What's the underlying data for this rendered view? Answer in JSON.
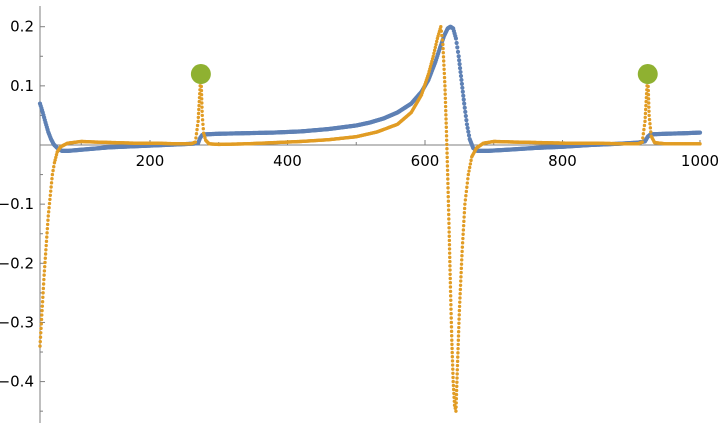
{
  "chart_data": {
    "type": "scatter",
    "title": "",
    "xlabel": "",
    "ylabel": "",
    "xlim": [
      40,
      1000
    ],
    "ylim": [
      -0.47,
      0.235
    ],
    "grid": false,
    "legend": "none",
    "x_ticks": {
      "major": [
        {
          "value": 200,
          "label": "200"
        },
        {
          "value": 400,
          "label": "400"
        },
        {
          "value": 600,
          "label": "600"
        },
        {
          "value": 800,
          "label": "800"
        },
        {
          "value": 1000,
          "label": "1000"
        }
      ],
      "minor": [
        100,
        300,
        500,
        700,
        900
      ]
    },
    "y_ticks": {
      "major": [
        {
          "value": 0.2,
          "label": "0.2"
        },
        {
          "value": 0.1,
          "label": "0.1"
        },
        {
          "value": -0.1,
          "label": "−0.1"
        },
        {
          "value": -0.2,
          "label": "−0.2"
        },
        {
          "value": -0.3,
          "label": "−0.3"
        },
        {
          "value": -0.4,
          "label": "−0.4"
        }
      ],
      "minor": [
        0.15,
        0.05,
        -0.05,
        -0.15,
        -0.25,
        -0.35,
        -0.45
      ]
    },
    "series": [
      {
        "color": "#5E81B5",
        "marker": "dot",
        "points": [
          [
            40,
            0.07
          ],
          [
            44,
            0.055
          ],
          [
            48,
            0.038
          ],
          [
            52,
            0.022
          ],
          [
            56,
            0.01
          ],
          [
            60,
            0.001
          ],
          [
            66,
            -0.006
          ],
          [
            72,
            -0.01
          ],
          [
            80,
            -0.01
          ],
          [
            90,
            -0.009
          ],
          [
            100,
            -0.008
          ],
          [
            120,
            -0.006
          ],
          [
            140,
            -0.004
          ],
          [
            160,
            -0.003
          ],
          [
            180,
            -0.002
          ],
          [
            200,
            -0.001
          ],
          [
            220,
            0.0
          ],
          [
            240,
            0.001
          ],
          [
            260,
            0.002
          ],
          [
            270,
            0.003
          ],
          [
            273,
            0.012
          ],
          [
            276,
            0.017
          ],
          [
            280,
            0.018
          ],
          [
            300,
            0.019
          ],
          [
            340,
            0.02
          ],
          [
            380,
            0.021
          ],
          [
            420,
            0.023
          ],
          [
            460,
            0.027
          ],
          [
            500,
            0.033
          ],
          [
            520,
            0.038
          ],
          [
            540,
            0.045
          ],
          [
            560,
            0.055
          ],
          [
            580,
            0.07
          ],
          [
            595,
            0.09
          ],
          [
            605,
            0.11
          ],
          [
            615,
            0.14
          ],
          [
            622,
            0.165
          ],
          [
            628,
            0.185
          ],
          [
            633,
            0.197
          ],
          [
            637,
            0.2
          ],
          [
            641,
            0.197
          ],
          [
            645,
            0.18
          ],
          [
            649,
            0.15
          ],
          [
            653,
            0.11
          ],
          [
            657,
            0.07
          ],
          [
            661,
            0.035
          ],
          [
            665,
            0.01
          ],
          [
            670,
            -0.005
          ],
          [
            676,
            -0.01
          ],
          [
            690,
            -0.01
          ],
          [
            720,
            -0.008
          ],
          [
            760,
            -0.005
          ],
          [
            800,
            -0.003
          ],
          [
            840,
            0.0
          ],
          [
            880,
            0.002
          ],
          [
            910,
            0.004
          ],
          [
            920,
            0.006
          ],
          [
            924,
            0.014
          ],
          [
            928,
            0.018
          ],
          [
            950,
            0.019
          ],
          [
            980,
            0.02
          ],
          [
            1000,
            0.021
          ]
        ]
      },
      {
        "color": "#E19C24",
        "marker": "dot",
        "points": [
          [
            40,
            -0.34
          ],
          [
            43,
            -0.28
          ],
          [
            46,
            -0.22
          ],
          [
            49,
            -0.17
          ],
          [
            52,
            -0.12
          ],
          [
            55,
            -0.085
          ],
          [
            58,
            -0.05
          ],
          [
            61,
            -0.03
          ],
          [
            65,
            -0.012
          ],
          [
            70,
            -0.003
          ],
          [
            80,
            0.003
          ],
          [
            100,
            0.006
          ],
          [
            120,
            0.005
          ],
          [
            150,
            0.004
          ],
          [
            180,
            0.003
          ],
          [
            210,
            0.003
          ],
          [
            240,
            0.002
          ],
          [
            260,
            0.002
          ],
          [
            266,
            0.005
          ],
          [
            270,
            0.04
          ],
          [
            272,
            0.08
          ],
          [
            274,
            0.12
          ],
          [
            276,
            0.05
          ],
          [
            278,
            0.02
          ],
          [
            281,
            0.008
          ],
          [
            286,
            0.002
          ],
          [
            300,
            0.001
          ],
          [
            340,
            0.002
          ],
          [
            380,
            0.004
          ],
          [
            420,
            0.006
          ],
          [
            460,
            0.009
          ],
          [
            500,
            0.014
          ],
          [
            530,
            0.022
          ],
          [
            560,
            0.035
          ],
          [
            580,
            0.055
          ],
          [
            595,
            0.085
          ],
          [
            605,
            0.12
          ],
          [
            612,
            0.15
          ],
          [
            618,
            0.18
          ],
          [
            623,
            0.2
          ],
          [
            626,
            0.17
          ],
          [
            629,
            0.1
          ],
          [
            631,
            0.03
          ],
          [
            633,
            -0.05
          ],
          [
            635,
            -0.14
          ],
          [
            637,
            -0.24
          ],
          [
            639,
            -0.33
          ],
          [
            641,
            -0.4
          ],
          [
            643,
            -0.44
          ],
          [
            645,
            -0.45
          ],
          [
            647,
            -0.38
          ],
          [
            650,
            -0.28
          ],
          [
            654,
            -0.18
          ],
          [
            658,
            -0.1
          ],
          [
            663,
            -0.05
          ],
          [
            668,
            -0.02
          ],
          [
            675,
            -0.005
          ],
          [
            685,
            0.003
          ],
          [
            700,
            0.006
          ],
          [
            730,
            0.005
          ],
          [
            770,
            0.004
          ],
          [
            810,
            0.003
          ],
          [
            850,
            0.003
          ],
          [
            890,
            0.002
          ],
          [
            910,
            0.002
          ],
          [
            916,
            0.005
          ],
          [
            920,
            0.04
          ],
          [
            922,
            0.08
          ],
          [
            924,
            0.12
          ],
          [
            926,
            0.05
          ],
          [
            929,
            0.015
          ],
          [
            934,
            0.004
          ],
          [
            950,
            0.002
          ],
          [
            1000,
            0.002
          ]
        ]
      },
      {
        "color": "#8FB131",
        "marker": "large-dot",
        "points": [
          [
            274,
            0.12
          ],
          [
            924,
            0.12
          ]
        ]
      }
    ]
  }
}
